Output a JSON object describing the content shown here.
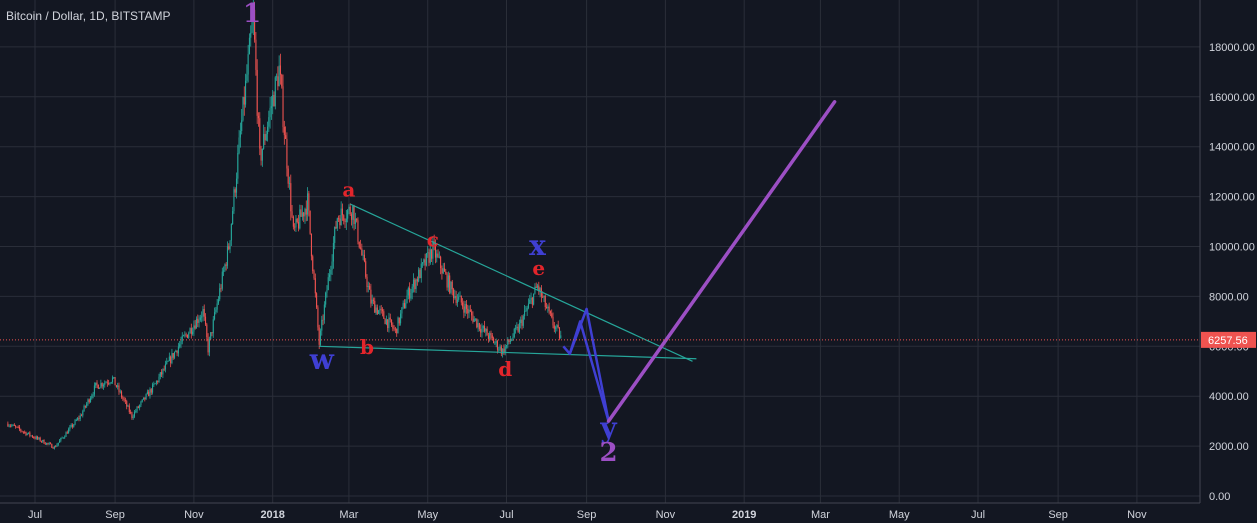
{
  "header": {
    "title": "Bitcoin / Dollar, 1D, BITSTAMP"
  },
  "colors": {
    "background": "#131722",
    "grid": "#2a2e39",
    "up": "#26a69a",
    "down": "#ef5350",
    "trendline": "#26a69a",
    "wave_red": "#e3252b",
    "wave_blue": "#3f3fd3",
    "wave_purple": "#9c4fc4",
    "price_line": "#ef5350",
    "axis_text": "#d1d4dc"
  },
  "chart_data": {
    "type": "candlestick",
    "symbol": "Bitcoin / Dollar",
    "interval": "1D",
    "exchange": "BITSTAMP",
    "ylim": [
      0,
      19500
    ],
    "y_ticks": [
      0,
      2000,
      4000,
      6000,
      8000,
      10000,
      12000,
      14000,
      16000,
      18000
    ],
    "y_tick_labels": [
      "0.00",
      "2000.00",
      "4000.00",
      "6000.00",
      "8000.00",
      "10000.00",
      "12000.00",
      "14000.00",
      "16000.00",
      "18000.00"
    ],
    "x_ticks": [
      {
        "date": "2017-07-01",
        "label": "Jul",
        "bold": false
      },
      {
        "date": "2017-09-01",
        "label": "Sep",
        "bold": false
      },
      {
        "date": "2017-11-01",
        "label": "Nov",
        "bold": false
      },
      {
        "date": "2018-01-01",
        "label": "2018",
        "bold": true
      },
      {
        "date": "2018-03-01",
        "label": "Mar",
        "bold": false
      },
      {
        "date": "2018-05-01",
        "label": "May",
        "bold": false
      },
      {
        "date": "2018-07-01",
        "label": "Jul",
        "bold": false
      },
      {
        "date": "2018-09-01",
        "label": "Sep",
        "bold": false
      },
      {
        "date": "2018-11-01",
        "label": "Nov",
        "bold": false
      },
      {
        "date": "2019-01-01",
        "label": "2019",
        "bold": true
      },
      {
        "date": "2019-03-01",
        "label": "Mar",
        "bold": false
      },
      {
        "date": "2019-05-01",
        "label": "May",
        "bold": false
      },
      {
        "date": "2019-07-01",
        "label": "Jul",
        "bold": false
      },
      {
        "date": "2019-09-01",
        "label": "Sep",
        "bold": false
      },
      {
        "date": "2019-11-01",
        "label": "Nov",
        "bold": false
      }
    ],
    "last_price": 6257.56,
    "last_price_label": "6257.56",
    "price_path": [
      [
        "2017-06-10",
        2900
      ],
      [
        "2017-06-25",
        2500
      ],
      [
        "2017-07-16",
        1950
      ],
      [
        "2017-08-05",
        3200
      ],
      [
        "2017-08-17",
        4400
      ],
      [
        "2017-08-30",
        4700
      ],
      [
        "2017-09-14",
        3200
      ],
      [
        "2017-10-01",
        4400
      ],
      [
        "2017-10-20",
        6000
      ],
      [
        "2017-11-08",
        7400
      ],
      [
        "2017-11-12",
        5900
      ],
      [
        "2017-11-28",
        10000
      ],
      [
        "2017-12-07",
        14500
      ],
      [
        "2017-12-17",
        19200
      ],
      [
        "2017-12-22",
        13500
      ],
      [
        "2018-01-06",
        17100
      ],
      [
        "2018-01-17",
        10500
      ],
      [
        "2018-01-28",
        11800
      ],
      [
        "2018-02-06",
        6100
      ],
      [
        "2018-02-20",
        11200
      ],
      [
        "2018-03-04",
        11500
      ],
      [
        "2018-03-18",
        7800
      ],
      [
        "2018-04-06",
        6600
      ],
      [
        "2018-04-15",
        8000
      ],
      [
        "2018-05-05",
        9900
      ],
      [
        "2018-05-20",
        8200
      ],
      [
        "2018-06-12",
        6700
      ],
      [
        "2018-06-28",
        5800
      ],
      [
        "2018-07-10",
        6700
      ],
      [
        "2018-07-25",
        8400
      ],
      [
        "2018-08-05",
        7000
      ],
      [
        "2018-08-13",
        6257.56
      ]
    ],
    "trendlines": [
      {
        "name": "upper",
        "points": [
          [
            "2018-03-02",
            11700
          ],
          [
            "2018-11-22",
            5400
          ]
        ]
      },
      {
        "name": "lower",
        "points": [
          [
            "2018-02-06",
            6000
          ],
          [
            "2018-11-25",
            5500
          ]
        ]
      }
    ],
    "projection_blue": [
      [
        "2018-08-14",
        6000
      ],
      [
        "2018-08-19",
        5700
      ],
      [
        "2018-09-01",
        7500
      ],
      [
        "2018-09-18",
        3000
      ]
    ],
    "projection_blue_inner": [
      [
        "2018-08-19",
        5700
      ],
      [
        "2018-08-27",
        7000
      ],
      [
        "2018-09-18",
        3000
      ]
    ],
    "projection_purple": [
      [
        "2018-09-18",
        3000
      ],
      [
        "2019-03-12",
        15800
      ]
    ],
    "annotations": [
      {
        "label": "1",
        "date": "2017-12-16",
        "value": 19000,
        "color": "purple"
      },
      {
        "label": "a",
        "date": "2018-03-01",
        "value": 12000,
        "color": "red"
      },
      {
        "label": "c",
        "date": "2018-05-05",
        "value": 10000,
        "color": "red"
      },
      {
        "label": "x",
        "date": "2018-07-25",
        "value": 9650,
        "color": "blue"
      },
      {
        "label": "e",
        "date": "2018-07-26",
        "value": 8850,
        "color": "red"
      },
      {
        "label": "w",
        "date": "2018-02-08",
        "value": 5100,
        "color": "blue"
      },
      {
        "label": "b",
        "date": "2018-03-15",
        "value": 5700,
        "color": "red"
      },
      {
        "label": "d",
        "date": "2018-06-30",
        "value": 4800,
        "color": "red"
      },
      {
        "label": "y",
        "date": "2018-09-18",
        "value": 2350,
        "color": "blue"
      },
      {
        "label": "2",
        "date": "2018-09-18",
        "value": 1400,
        "color": "purple"
      }
    ]
  }
}
